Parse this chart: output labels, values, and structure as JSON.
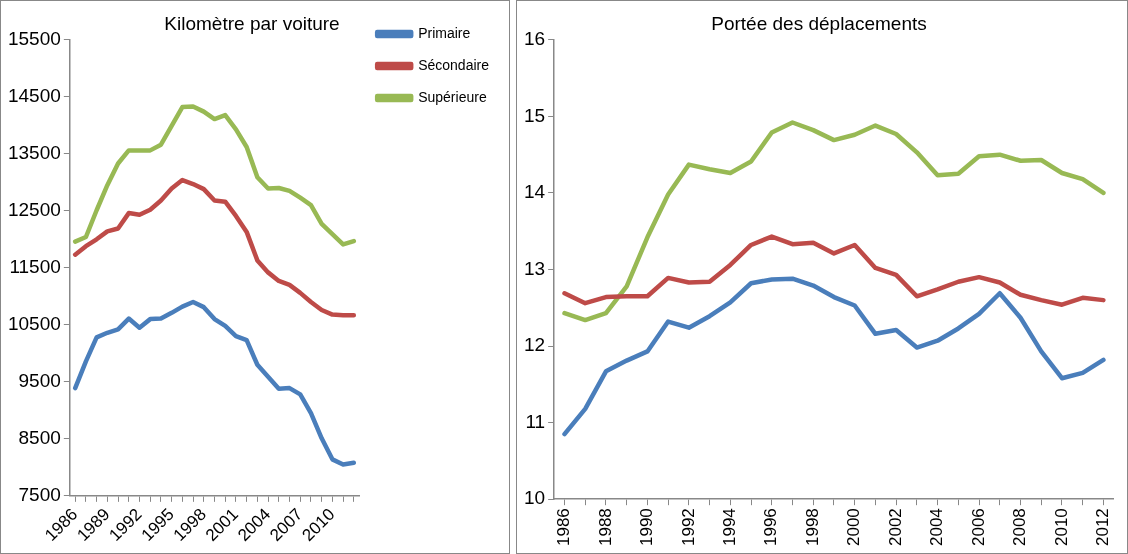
{
  "chart_data": [
    {
      "type": "line",
      "title": "Kilomètre par voiture",
      "categories": [
        "1986",
        null,
        null,
        "1989",
        null,
        null,
        "1992",
        null,
        null,
        "1995",
        null,
        null,
        "1998",
        null,
        null,
        "2001",
        null,
        null,
        "2004",
        null,
        null,
        "2007",
        null,
        null,
        "2010",
        null,
        null
      ],
      "series": [
        {
          "name": "Primaire",
          "color": "#4a7ebb",
          "values": [
            9390,
            9860,
            10280,
            10360,
            10420,
            10610,
            10450,
            10600,
            10610,
            10710,
            10820,
            10900,
            10810,
            10600,
            10480,
            10300,
            10230,
            9800,
            9590,
            9380,
            9390,
            9280,
            8950,
            8510,
            8140,
            8050,
            8080
          ]
        },
        {
          "name": "Sécondaire",
          "color": "#be4b48",
          "values": [
            11730,
            11880,
            12000,
            12140,
            12190,
            12460,
            12430,
            12520,
            12680,
            12890,
            13040,
            12970,
            12880,
            12680,
            12660,
            12410,
            12130,
            11630,
            11420,
            11270,
            11200,
            11060,
            10900,
            10760,
            10680,
            10670,
            10670
          ]
        },
        {
          "name": "Supérieure",
          "color": "#98b954",
          "values": [
            11960,
            12040,
            12510,
            12950,
            13330,
            13560,
            13560,
            13560,
            13660,
            13990,
            14320,
            14330,
            14240,
            14110,
            14180,
            13930,
            13620,
            13090,
            12890,
            12900,
            12850,
            12730,
            12600,
            12270,
            12090,
            11910,
            11970
          ]
        }
      ],
      "ylim": [
        7500,
        15500
      ],
      "yticks": [
        7500,
        8500,
        9500,
        10500,
        11500,
        12500,
        13500,
        14500,
        15500
      ],
      "grid": false,
      "legend": "top right",
      "marker": "none",
      "line_style": "solid"
    },
    {
      "type": "line",
      "title": "Portée des déplacements",
      "categories": [
        "1986",
        null,
        "1988",
        null,
        "1990",
        null,
        "1992",
        null,
        "1994",
        null,
        "1996",
        null,
        "1998",
        null,
        "2000",
        null,
        "2002",
        null,
        "2004",
        null,
        "2006",
        null,
        "2008",
        null,
        "2010",
        null,
        "2012"
      ],
      "series": [
        {
          "color": "#4a7ebb",
          "values": [
            10.85,
            11.18,
            11.67,
            11.81,
            11.93,
            12.32,
            12.24,
            12.39,
            12.57,
            12.82,
            12.87,
            12.88,
            12.79,
            12.64,
            12.53,
            12.16,
            12.21,
            11.98,
            12.07,
            12.23,
            12.42,
            12.69,
            12.37,
            11.93,
            11.58,
            11.65,
            11.82
          ]
        },
        {
          "color": "#be4b48",
          "values": [
            12.69,
            12.56,
            12.64,
            12.65,
            12.65,
            12.89,
            12.83,
            12.84,
            13.06,
            13.32,
            13.43,
            13.33,
            13.35,
            13.21,
            13.32,
            13.02,
            12.93,
            12.65,
            12.74,
            12.84,
            12.9,
            12.83,
            12.67,
            12.6,
            12.54,
            12.63,
            12.6
          ]
        },
        {
          "color": "#98b954",
          "values": [
            12.43,
            12.34,
            12.43,
            12.78,
            13.42,
            13.98,
            14.37,
            14.31,
            14.26,
            14.41,
            14.79,
            14.92,
            14.82,
            14.69,
            14.76,
            14.88,
            14.77,
            14.53,
            14.23,
            14.25,
            14.48,
            14.5,
            14.42,
            14.43,
            14.26,
            14.18,
            14.0
          ]
        }
      ],
      "ylim": [
        10,
        16
      ],
      "yticks": [
        10,
        11,
        12,
        13,
        14,
        15,
        16
      ],
      "grid": false,
      "legend": false,
      "marker": "none",
      "line_style": "solid"
    }
  ]
}
